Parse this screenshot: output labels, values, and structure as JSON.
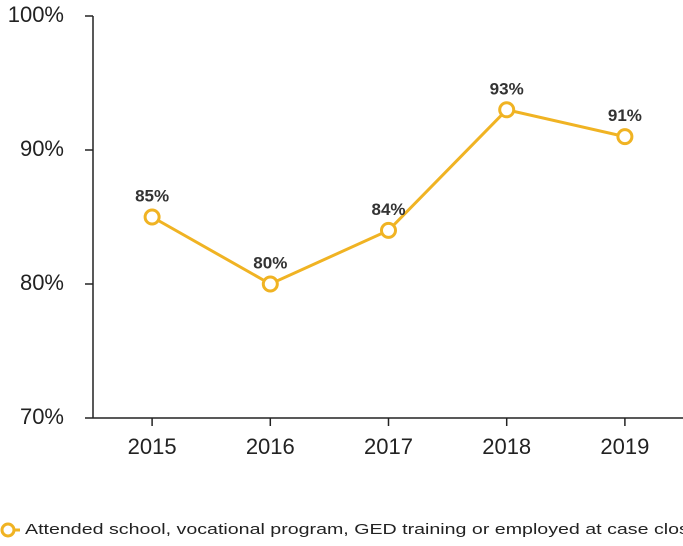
{
  "chart_data": {
    "type": "line",
    "categories": [
      "2015",
      "2016",
      "2017",
      "2018",
      "2019"
    ],
    "series": [
      {
        "name": "Attended school, vocational program, GED training or employed at case closing",
        "color": "#f0b323",
        "values": [
          85,
          80,
          84,
          93,
          91
        ],
        "value_labels": [
          "85%",
          "80%",
          "84%",
          "93%",
          "91%"
        ]
      }
    ],
    "ylim": [
      70,
      100
    ],
    "yticks": [
      {
        "value": 70,
        "label": "70%"
      },
      {
        "value": 80,
        "label": "80%"
      },
      {
        "value": 90,
        "label": "90%"
      },
      {
        "value": 100,
        "label": "100%"
      }
    ],
    "grid": false,
    "legend": "bottom"
  }
}
